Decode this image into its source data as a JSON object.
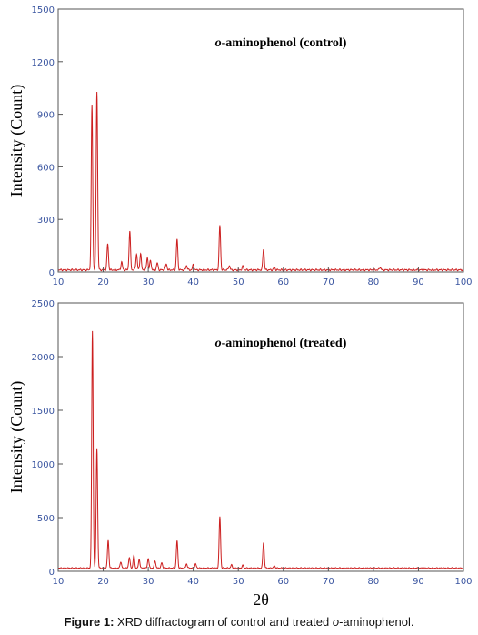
{
  "figure": {
    "caption_label": "Figure 1:",
    "caption_pre": " XRD diffractogram of control and treated ",
    "caption_italic": "o",
    "caption_post": "-aminophenol."
  },
  "colors": {
    "series": "#cc1f1f",
    "axis": "#555555",
    "tick_text": "#3a55a0",
    "title_text": "#000000"
  },
  "chart_data": [
    {
      "type": "line",
      "title_prefix": "o",
      "title_rest": "-aminophenol (control)",
      "ylabel": "Intensity (Count)",
      "xlabel": "",
      "xlim": [
        10,
        100
      ],
      "ylim": [
        0,
        1500
      ],
      "xticks": [
        10,
        20,
        30,
        40,
        50,
        60,
        70,
        80,
        90,
        100
      ],
      "yticks": [
        0,
        300,
        600,
        900,
        1200,
        1500
      ],
      "grid": false,
      "baseline": 12,
      "peaks": [
        [
          17.5,
          940
        ],
        [
          18.6,
          1020
        ],
        [
          21.0,
          150
        ],
        [
          24.1,
          45
        ],
        [
          25.9,
          220
        ],
        [
          27.4,
          90
        ],
        [
          28.3,
          95
        ],
        [
          29.8,
          70
        ],
        [
          30.5,
          55
        ],
        [
          32.0,
          40
        ],
        [
          34.0,
          35
        ],
        [
          36.4,
          175
        ],
        [
          38.5,
          25
        ],
        [
          40.0,
          30
        ],
        [
          45.9,
          255
        ],
        [
          48.0,
          25
        ],
        [
          51.0,
          20
        ],
        [
          55.6,
          120
        ],
        [
          58.0,
          15
        ],
        [
          81.5,
          15
        ]
      ]
    },
    {
      "type": "line",
      "title_prefix": "o",
      "title_rest": "-aminophenol (treated)",
      "ylabel": "Intensity (Count)",
      "xlabel": "2θ",
      "xlim": [
        10,
        100
      ],
      "ylim": [
        0,
        2500
      ],
      "xticks": [
        10,
        20,
        30,
        40,
        50,
        60,
        70,
        80,
        90,
        100
      ],
      "yticks": [
        0,
        500,
        1000,
        1500,
        2000,
        2500
      ],
      "grid": false,
      "baseline": 30,
      "peaks": [
        [
          17.6,
          2210
        ],
        [
          18.6,
          1120
        ],
        [
          21.1,
          260
        ],
        [
          23.9,
          60
        ],
        [
          25.8,
          100
        ],
        [
          26.8,
          120
        ],
        [
          28.0,
          80
        ],
        [
          30.0,
          90
        ],
        [
          31.5,
          70
        ],
        [
          33.0,
          50
        ],
        [
          36.4,
          255
        ],
        [
          38.5,
          40
        ],
        [
          40.5,
          40
        ],
        [
          45.9,
          480
        ],
        [
          48.5,
          30
        ],
        [
          51.0,
          25
        ],
        [
          55.6,
          240
        ],
        [
          58.0,
          20
        ]
      ]
    }
  ]
}
